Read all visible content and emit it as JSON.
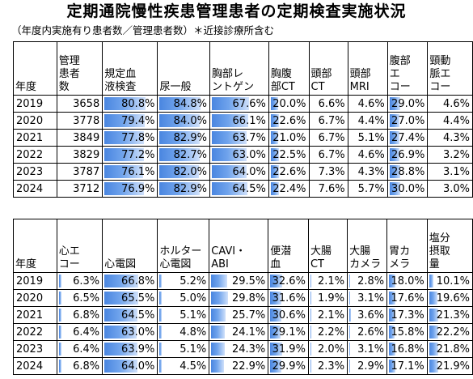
{
  "title": "定期通院慢性疾患管理患者の定期検査実施状況",
  "subtitle": "（年度内実施有り患者数／管理患者数）＊近接診療所含む",
  "table1": {
    "year_header": "年度",
    "headers": [
      "管理患者数",
      "規定血液検査",
      "尿一般",
      "胸部レントゲン",
      "胸腹部CT",
      "頭部CT",
      "頭部MRI",
      "腹部エコー",
      "頸動脈エコー"
    ],
    "header_lines": [
      [
        "管理",
        "患者",
        "数"
      ],
      [
        "規定血",
        "液検査"
      ],
      [
        "尿一般"
      ],
      [
        "胸部レ",
        "ントゲン"
      ],
      [
        "胸腹",
        "部CT"
      ],
      [
        "頭部",
        "CT"
      ],
      [
        "頭部",
        "MRI"
      ],
      [
        "腹部",
        "エ",
        "コー"
      ],
      [
        "頸動",
        "脈エ",
        "コー"
      ]
    ],
    "bar_columns": [
      1,
      2,
      3,
      4,
      7
    ],
    "rows": [
      {
        "year": "2019",
        "values": [
          "3658",
          "80.8%",
          "84.8%",
          "67.6%",
          "20.0%",
          "6.6%",
          "4.6%",
          "29.0%",
          "4.6%"
        ]
      },
      {
        "year": "2020",
        "values": [
          "3778",
          "79.4%",
          "84.0%",
          "66.1%",
          "22.6%",
          "6.7%",
          "4.4%",
          "27.0%",
          "4.4%"
        ]
      },
      {
        "year": "2021",
        "values": [
          "3849",
          "77.8%",
          "82.9%",
          "63.7%",
          "21.0%",
          "6.7%",
          "5.1%",
          "27.4%",
          "4.3%"
        ]
      },
      {
        "year": "2022",
        "values": [
          "3829",
          "77.2%",
          "82.7%",
          "63.0%",
          "22.5%",
          "6.7%",
          "4.6%",
          "26.9%",
          "3.2%"
        ]
      },
      {
        "year": "2023",
        "values": [
          "3787",
          "76.1%",
          "82.0%",
          "64.0%",
          "22.6%",
          "7.3%",
          "4.3%",
          "28.8%",
          "3.1%"
        ]
      },
      {
        "year": "2024",
        "values": [
          "3712",
          "76.9%",
          "82.9%",
          "64.5%",
          "22.4%",
          "7.6%",
          "5.7%",
          "30.0%",
          "3.0%"
        ]
      }
    ]
  },
  "table2": {
    "year_header": "年度",
    "headers": [
      "心エコー",
      "心電図",
      "ホルター心電図",
      "CAVI・ABI",
      "便潜血",
      "大腸CT",
      "大腸カメラ",
      "胃カメラ",
      "塩分摂取量"
    ],
    "header_lines": [
      [
        "心エ",
        "コー"
      ],
      [
        "心電図"
      ],
      [
        "ホルター",
        "心電図"
      ],
      [
        "CAVI・",
        "ABI"
      ],
      [
        "便潜",
        "血"
      ],
      [
        "大腸",
        "CT"
      ],
      [
        "大腸",
        "カメラ"
      ],
      [
        "胃カ",
        "メラ"
      ],
      [
        "塩分",
        "摂取",
        "量"
      ]
    ],
    "bar_columns": [
      0,
      1,
      2,
      3,
      4,
      5,
      6,
      7,
      8
    ],
    "rows": [
      {
        "year": "2019",
        "values": [
          "6.3%",
          "66.8%",
          "5.2%",
          "29.5%",
          "32.6%",
          "2.1%",
          "2.8%",
          "18.0%",
          "10.1%"
        ]
      },
      {
        "year": "2020",
        "values": [
          "6.5%",
          "65.5%",
          "5.0%",
          "29.8%",
          "31.6%",
          "1.9%",
          "3.1%",
          "17.6%",
          "19.6%"
        ]
      },
      {
        "year": "2021",
        "values": [
          "6.8%",
          "64.5%",
          "5.1%",
          "25.7%",
          "30.6%",
          "2.1%",
          "3.6%",
          "17.3%",
          "21.3%"
        ]
      },
      {
        "year": "2022",
        "values": [
          "6.4%",
          "63.0%",
          "4.8%",
          "24.1%",
          "29.1%",
          "2.2%",
          "2.6%",
          "15.8%",
          "22.2%"
        ]
      },
      {
        "year": "2023",
        "values": [
          "6.4%",
          "63.9%",
          "5.1%",
          "24.3%",
          "31.9%",
          "2.0%",
          "3.1%",
          "16.8%",
          "21.8%"
        ]
      },
      {
        "year": "2024",
        "values": [
          "6.8%",
          "64.0%",
          "4.5%",
          "22.9%",
          "29.9%",
          "2.3%",
          "2.9%",
          "17.1%",
          "21.9%"
        ]
      }
    ]
  }
}
